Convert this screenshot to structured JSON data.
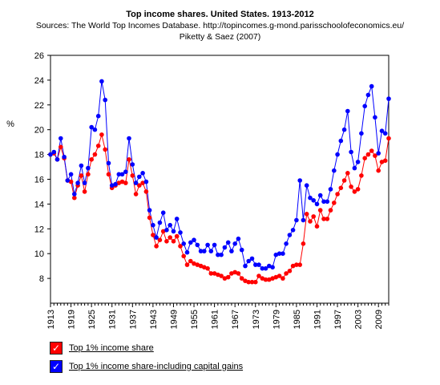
{
  "header": {
    "title": "Top income shares. United States. 1913-2012",
    "subtitle_line1": "Sources: The World Top Incomes Database. http://topincomes.g-mond.parisschoolofeconomics.eu/",
    "subtitle_line2": "Piketty & Saez (2007)"
  },
  "legend": {
    "items": [
      {
        "label": "Top 1% income share",
        "color": "#ff0000",
        "check": "✓"
      },
      {
        "label": "Top 1% income share-including capital gains",
        "color": "#0000ff",
        "check": "✓"
      }
    ]
  },
  "chart_data": {
    "type": "line",
    "title": "Top income shares. United States. 1913-2012",
    "xlabel": "",
    "ylabel": "%",
    "xlim": [
      1913,
      2012
    ],
    "ylim": [
      6,
      26
    ],
    "yticks": [
      8,
      10,
      12,
      14,
      16,
      18,
      20,
      22,
      24,
      26
    ],
    "xticks": [
      1913,
      1919,
      1925,
      1931,
      1937,
      1943,
      1949,
      1955,
      1961,
      1967,
      1973,
      1979,
      1985,
      1991,
      1997,
      2003,
      2009
    ],
    "grid": false,
    "legend_position": "bottom-left",
    "series": [
      {
        "name": "Top 1% income share",
        "color": "#ff0000",
        "x": [
          1913,
          1914,
          1915,
          1916,
          1917,
          1918,
          1919,
          1920,
          1921,
          1922,
          1923,
          1924,
          1925,
          1926,
          1927,
          1928,
          1929,
          1930,
          1931,
          1932,
          1933,
          1934,
          1935,
          1936,
          1937,
          1938,
          1939,
          1940,
          1941,
          1942,
          1943,
          1944,
          1945,
          1946,
          1947,
          1948,
          1949,
          1950,
          1951,
          1952,
          1953,
          1954,
          1955,
          1956,
          1957,
          1958,
          1959,
          1960,
          1961,
          1962,
          1963,
          1964,
          1965,
          1966,
          1967,
          1968,
          1969,
          1970,
          1971,
          1972,
          1973,
          1974,
          1975,
          1976,
          1977,
          1978,
          1979,
          1980,
          1981,
          1982,
          1983,
          1984,
          1985,
          1986,
          1987,
          1988,
          1989,
          1990,
          1991,
          1992,
          1993,
          1994,
          1995,
          1996,
          1997,
          1998,
          1999,
          2000,
          2001,
          2002,
          2003,
          2004,
          2005,
          2006,
          2007,
          2008,
          2009,
          2010,
          2011,
          2012
        ],
        "values": [
          18.0,
          18.1,
          17.6,
          18.6,
          17.7,
          15.9,
          15.8,
          14.5,
          15.5,
          16.3,
          15.0,
          16.4,
          17.6,
          18.0,
          18.7,
          19.6,
          18.4,
          16.4,
          15.3,
          15.5,
          15.7,
          15.8,
          15.7,
          17.6,
          16.3,
          14.8,
          15.5,
          15.7,
          15.0,
          12.9,
          11.5,
          10.6,
          11.1,
          11.8,
          11.0,
          11.3,
          11.0,
          11.4,
          10.6,
          9.8,
          9.1,
          9.4,
          9.2,
          9.1,
          9.0,
          8.9,
          8.8,
          8.4,
          8.4,
          8.3,
          8.2,
          8.0,
          8.1,
          8.4,
          8.5,
          8.4,
          8.0,
          7.8,
          7.7,
          7.7,
          7.7,
          8.2,
          8.0,
          7.9,
          7.9,
          8.0,
          8.1,
          8.2,
          8.0,
          8.4,
          8.6,
          9.0,
          9.1,
          9.1,
          10.8,
          13.2,
          12.6,
          13.0,
          12.2,
          13.5,
          12.8,
          12.8,
          13.5,
          14.1,
          14.8,
          15.3,
          15.9,
          16.5,
          15.4,
          15.0,
          15.2,
          16.3,
          17.7,
          18.0,
          18.3,
          17.9,
          16.7,
          17.4,
          17.5,
          19.3
        ]
      },
      {
        "name": "Top 1% income share-including capital gains",
        "color": "#0000ff",
        "x": [
          1913,
          1914,
          1915,
          1916,
          1917,
          1918,
          1919,
          1920,
          1921,
          1922,
          1923,
          1924,
          1925,
          1926,
          1927,
          1928,
          1929,
          1930,
          1931,
          1932,
          1933,
          1934,
          1935,
          1936,
          1937,
          1938,
          1939,
          1940,
          1941,
          1942,
          1943,
          1944,
          1945,
          1946,
          1947,
          1948,
          1949,
          1950,
          1951,
          1952,
          1953,
          1954,
          1955,
          1956,
          1957,
          1958,
          1959,
          1960,
          1961,
          1962,
          1963,
          1964,
          1965,
          1966,
          1967,
          1968,
          1969,
          1970,
          1971,
          1972,
          1973,
          1974,
          1975,
          1976,
          1977,
          1978,
          1979,
          1980,
          1981,
          1982,
          1983,
          1984,
          1985,
          1986,
          1987,
          1988,
          1989,
          1990,
          1991,
          1992,
          1993,
          1994,
          1995,
          1996,
          1997,
          1998,
          1999,
          2000,
          2001,
          2002,
          2003,
          2004,
          2005,
          2006,
          2007,
          2008,
          2009,
          2010,
          2011,
          2012
        ],
        "values": [
          18.0,
          18.2,
          17.6,
          19.3,
          17.8,
          15.9,
          16.4,
          14.8,
          15.7,
          17.1,
          15.7,
          16.9,
          20.2,
          20.0,
          21.1,
          23.9,
          22.4,
          17.3,
          15.5,
          15.6,
          16.4,
          16.4,
          16.6,
          19.3,
          17.2,
          15.7,
          16.2,
          16.5,
          15.8,
          13.5,
          12.3,
          11.3,
          12.5,
          13.3,
          11.9,
          12.3,
          11.8,
          12.8,
          11.7,
          10.8,
          10.1,
          10.9,
          11.1,
          10.7,
          10.2,
          10.2,
          10.7,
          10.2,
          10.7,
          9.9,
          9.9,
          10.5,
          10.9,
          10.2,
          10.8,
          11.2,
          10.3,
          9.0,
          9.4,
          9.6,
          9.1,
          9.1,
          8.8,
          8.8,
          9.0,
          8.9,
          9.9,
          10.0,
          10.0,
          10.8,
          11.5,
          11.9,
          12.7,
          15.9,
          12.7,
          15.5,
          14.5,
          14.3,
          14.0,
          14.7,
          14.2,
          14.2,
          15.2,
          16.7,
          18.0,
          19.1,
          20.0,
          21.5,
          18.2,
          16.9,
          17.4,
          19.7,
          21.9,
          22.8,
          23.5,
          21.0,
          18.1,
          19.9,
          19.7,
          22.5
        ]
      }
    ]
  }
}
